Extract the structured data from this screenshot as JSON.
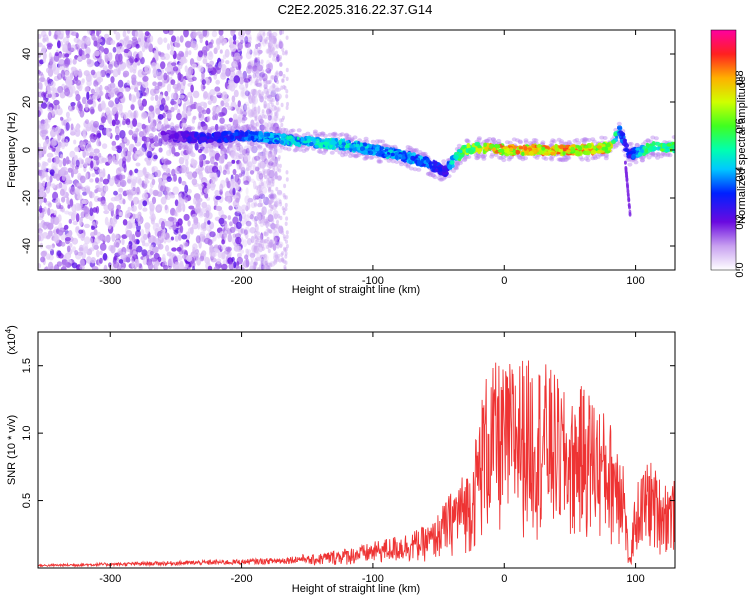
{
  "title": "C2E2.2025.316.22.37.G14",
  "colors": {
    "snr_line": "#ee3333",
    "axis": "#000000"
  },
  "chart_data": [
    {
      "type": "heatmap",
      "xlabel": "Height of straight line (km)",
      "ylabel": "Frequency (Hz)",
      "xlim": [
        -355,
        130
      ],
      "ylim": [
        -50,
        50
      ],
      "x_ticks": [
        -300,
        -200,
        -100,
        0,
        100
      ],
      "x_tick_labels": [
        "-300",
        "-200",
        "-100",
        "0",
        "100"
      ],
      "y_ticks": [
        -40,
        -20,
        0,
        20,
        40
      ],
      "y_tick_labels": [
        "-40",
        "-20",
        "0",
        "20",
        "40"
      ],
      "colorbar": {
        "label": "Normalized spectral amplitude",
        "range": [
          0,
          1
        ],
        "ticks": [
          0.0,
          0.2,
          0.4,
          0.6,
          0.8
        ],
        "tick_labels": [
          "0.0",
          "0.2",
          "0.4",
          "0.6",
          "0.8"
        ]
      },
      "ridge": {
        "x": [
          -260,
          -230,
          -200,
          -180,
          -160,
          -140,
          -120,
          -100,
          -80,
          -60,
          -45,
          -40,
          -30,
          -20,
          0,
          20,
          40,
          60,
          80,
          88,
          95,
          110,
          130
        ],
        "y": [
          6,
          5,
          6,
          5,
          4,
          3,
          2,
          0,
          -2,
          -5,
          -9,
          -5,
          0,
          1,
          0,
          0,
          0,
          0,
          1,
          8,
          -2,
          1,
          1
        ],
        "amplitude": [
          0.2,
          0.3,
          0.35,
          0.45,
          0.5,
          0.5,
          0.5,
          0.45,
          0.45,
          0.4,
          0.3,
          0.5,
          0.65,
          0.75,
          0.85,
          0.85,
          0.85,
          0.85,
          0.8,
          0.4,
          0.3,
          0.6,
          0.6
        ]
      },
      "noise_region_xlim": [
        -355,
        -180
      ]
    },
    {
      "type": "line",
      "xlabel": "Height of straight line (km)",
      "ylabel": "SNR (10 * v/v)",
      "y_multiplier_label": "(x10",
      "y_multiplier_exp": "4",
      "y_multiplier_close": ")",
      "xlim": [
        -355,
        130
      ],
      "ylim": [
        0,
        1.75
      ],
      "x_ticks": [
        -300,
        -200,
        -100,
        0,
        100
      ],
      "x_tick_labels": [
        "-300",
        "-200",
        "-100",
        "0",
        "100"
      ],
      "y_ticks": [
        0.5,
        1.0,
        1.5
      ],
      "y_tick_labels": [
        "0.5",
        "1.0",
        "1.5"
      ],
      "envelope": {
        "x": [
          -355,
          -300,
          -250,
          -200,
          -170,
          -150,
          -130,
          -110,
          -90,
          -70,
          -55,
          -45,
          -35,
          -25,
          -20,
          -15,
          -5,
          0,
          10,
          20,
          30,
          40,
          50,
          60,
          70,
          80,
          90,
          95,
          100,
          110,
          120,
          130
        ],
        "y": [
          0.02,
          0.03,
          0.04,
          0.05,
          0.06,
          0.08,
          0.12,
          0.15,
          0.2,
          0.25,
          0.3,
          0.45,
          0.6,
          0.7,
          1.0,
          1.3,
          1.4,
          1.35,
          1.45,
          1.4,
          1.4,
          1.3,
          1.1,
          1.25,
          1.15,
          1.0,
          0.9,
          0.05,
          0.55,
          0.75,
          0.6,
          0.6
        ]
      },
      "series": [
        {
          "values_note": ""
        }
      ]
    }
  ]
}
